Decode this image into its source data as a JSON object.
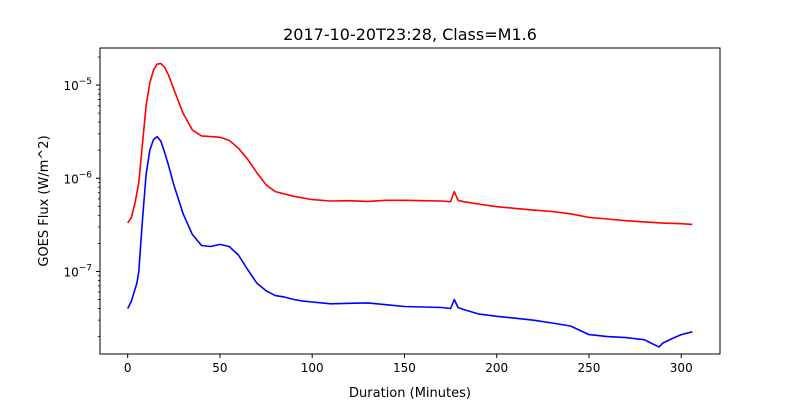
{
  "chart_data": {
    "type": "line",
    "title": "2017-10-20T23:28, Class=M1.6",
    "xlabel": "Duration (Minutes)",
    "ylabel": "GOES Flux (W/m^2)",
    "xlim": [
      -15,
      321
    ],
    "ylim": [
      1.3e-08,
      2.5e-05
    ],
    "yscale": "log",
    "x_ticks": [
      0,
      50,
      100,
      150,
      200,
      250,
      300
    ],
    "x_tick_labels": [
      "0",
      "50",
      "100",
      "150",
      "200",
      "250",
      "300"
    ],
    "y_ticks": [
      1e-07,
      1e-06,
      1e-05
    ],
    "y_tick_labels": [
      "10",
      "10",
      "10"
    ],
    "y_tick_exponents": [
      "−7",
      "−6",
      "−5"
    ],
    "grid": false,
    "series": [
      {
        "color": "#ff0000",
        "x": [
          0,
          2,
          4,
          6,
          8,
          10,
          12,
          14,
          16,
          18,
          20,
          22,
          25,
          30,
          35,
          40,
          45,
          50,
          55,
          60,
          65,
          70,
          75,
          80,
          90,
          100,
          110,
          120,
          130,
          140,
          150,
          160,
          170,
          175,
          177,
          179,
          182,
          190,
          200,
          210,
          220,
          230,
          240,
          250,
          260,
          270,
          280,
          290,
          300,
          306
        ],
        "y": [
          3.3e-07,
          3.8e-07,
          5.5e-07,
          9e-07,
          2.3e-06,
          6e-06,
          1.05e-05,
          1.45e-05,
          1.68e-05,
          1.7e-05,
          1.55e-05,
          1.3e-05,
          9e-06,
          5e-06,
          3.3e-06,
          2.85e-06,
          2.8e-06,
          2.75e-06,
          2.55e-06,
          2.1e-06,
          1.6e-06,
          1.15e-06,
          8.5e-07,
          7.2e-07,
          6.4e-07,
          5.9e-07,
          5.7e-07,
          5.75e-07,
          5.65e-07,
          5.8e-07,
          5.8e-07,
          5.75e-07,
          5.7e-07,
          5.6e-07,
          7.2e-07,
          5.8e-07,
          5.6e-07,
          5.3e-07,
          4.95e-07,
          4.75e-07,
          4.55e-07,
          4.4e-07,
          4.15e-07,
          3.8e-07,
          3.65e-07,
          3.5e-07,
          3.4e-07,
          3.3e-07,
          3.25e-07,
          3.2e-07
        ]
      },
      {
        "color": "#0000ff",
        "x": [
          0,
          2,
          4,
          5,
          6,
          8,
          10,
          12,
          14,
          16,
          18,
          20,
          22,
          25,
          30,
          35,
          40,
          45,
          50,
          55,
          60,
          65,
          70,
          75,
          80,
          85,
          90,
          95,
          100,
          110,
          120,
          130,
          140,
          150,
          160,
          170,
          175,
          177,
          179,
          182,
          190,
          200,
          210,
          220,
          230,
          240,
          250,
          260,
          270,
          280,
          285,
          288,
          290,
          295,
          300,
          306
        ],
        "y": [
          4e-08,
          4.8e-08,
          6.5e-08,
          7.5e-08,
          1e-07,
          3.5e-07,
          1.1e-06,
          2e-06,
          2.6e-06,
          2.8e-06,
          2.5e-06,
          1.9e-06,
          1.4e-06,
          8.5e-07,
          4.2e-07,
          2.5e-07,
          1.9e-07,
          1.85e-07,
          1.95e-07,
          1.85e-07,
          1.5e-07,
          1.05e-07,
          7.5e-08,
          6.2e-08,
          5.5e-08,
          5.3e-08,
          5e-08,
          4.8e-08,
          4.7e-08,
          4.5e-08,
          4.55e-08,
          4.6e-08,
          4.4e-08,
          4.2e-08,
          4.15e-08,
          4.1e-08,
          4e-08,
          5e-08,
          4.1e-08,
          3.9e-08,
          3.5e-08,
          3.3e-08,
          3.15e-08,
          3e-08,
          2.8e-08,
          2.6e-08,
          2.1e-08,
          2e-08,
          1.95e-08,
          1.85e-08,
          1.65e-08,
          1.55e-08,
          1.7e-08,
          1.9e-08,
          2.1e-08,
          2.25e-08
        ]
      }
    ]
  }
}
